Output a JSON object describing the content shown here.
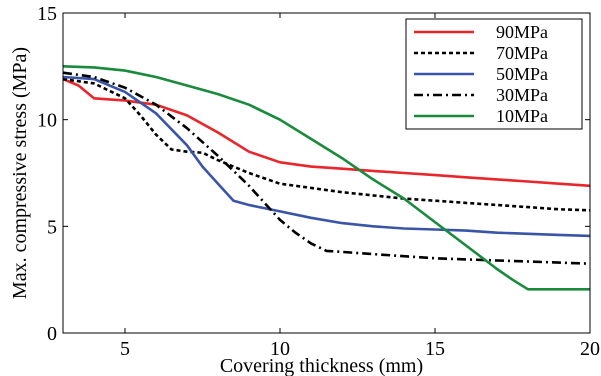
{
  "chart_data": {
    "type": "line",
    "title": "",
    "xlabel": "Covering thickness (mm)",
    "ylabel": "Max. compressive stress (MPa)",
    "xlim": [
      3,
      20
    ],
    "ylim": [
      0,
      15
    ],
    "xticks": [
      5,
      10,
      15,
      20
    ],
    "yticks": [
      0,
      5,
      10,
      15
    ],
    "grid": false,
    "legend_position": "top-right",
    "series": [
      {
        "name": "90MPa",
        "color": "#e8262b",
        "dash": "solid",
        "x": [
          3,
          3.5,
          4,
          4.5,
          5,
          6,
          7,
          8,
          9,
          10,
          11,
          12,
          13,
          14,
          15,
          16,
          17,
          18,
          19,
          20
        ],
        "y": [
          11.9,
          11.6,
          11.0,
          10.95,
          10.9,
          10.7,
          10.2,
          9.4,
          8.5,
          8.0,
          7.8,
          7.7,
          7.6,
          7.5,
          7.4,
          7.3,
          7.2,
          7.1,
          7.0,
          6.9
        ]
      },
      {
        "name": "70MPa",
        "color": "#000000",
        "dash": "dotted",
        "x": [
          3,
          4,
          5,
          5.5,
          6,
          6.5,
          7,
          7.5,
          8,
          9,
          10,
          11,
          12,
          13,
          14,
          15,
          16,
          17,
          18,
          19,
          20
        ],
        "y": [
          11.9,
          11.7,
          11.0,
          10.2,
          9.3,
          8.6,
          8.5,
          8.45,
          8.1,
          7.5,
          7.0,
          6.8,
          6.6,
          6.45,
          6.3,
          6.2,
          6.1,
          6.0,
          5.9,
          5.8,
          5.75
        ]
      },
      {
        "name": "50MPa",
        "color": "#3a55a8",
        "dash": "solid",
        "x": [
          3,
          4,
          5,
          6,
          7,
          7.5,
          8,
          8.5,
          9,
          10,
          11,
          12,
          13,
          14,
          15,
          16,
          17,
          18,
          19,
          20
        ],
        "y": [
          12.0,
          11.9,
          11.3,
          10.3,
          8.8,
          7.8,
          7.0,
          6.2,
          6.0,
          5.7,
          5.4,
          5.15,
          5.0,
          4.9,
          4.85,
          4.8,
          4.7,
          4.65,
          4.6,
          4.55
        ]
      },
      {
        "name": "30MPa",
        "color": "#000000",
        "dash": "dashdot",
        "x": [
          3,
          4,
          5,
          6,
          7,
          8,
          9,
          10,
          10.5,
          11,
          11.5,
          12,
          13,
          14,
          15,
          16,
          17,
          18,
          19,
          20
        ],
        "y": [
          12.2,
          12.0,
          11.5,
          10.7,
          9.6,
          8.3,
          6.9,
          5.3,
          4.7,
          4.2,
          3.85,
          3.8,
          3.7,
          3.6,
          3.5,
          3.45,
          3.4,
          3.35,
          3.3,
          3.25
        ]
      },
      {
        "name": "10MPa",
        "color": "#1a8a3c",
        "dash": "solid",
        "x": [
          3,
          4,
          5,
          6,
          7,
          8,
          9,
          10,
          11,
          12,
          13,
          14,
          15,
          16,
          17,
          17.5,
          18,
          19,
          20
        ],
        "y": [
          12.5,
          12.45,
          12.3,
          12.0,
          11.6,
          11.2,
          10.7,
          10.0,
          9.1,
          8.2,
          7.2,
          6.3,
          5.2,
          4.1,
          3.0,
          2.5,
          2.05,
          2.05,
          2.05
        ]
      }
    ]
  }
}
